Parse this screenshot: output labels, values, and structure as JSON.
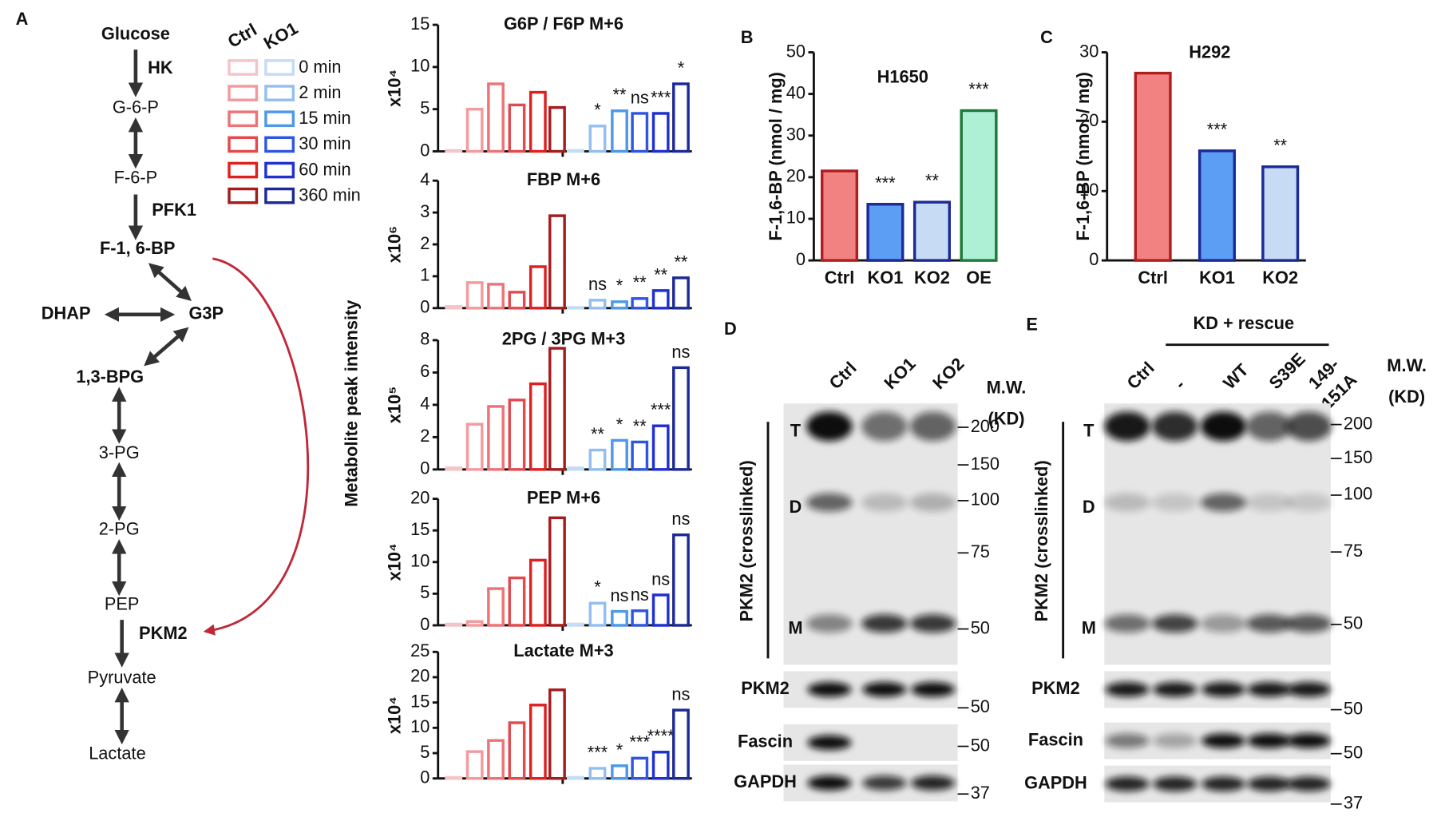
{
  "panel_a": {
    "letter": "A",
    "y_label": "Metabolite peak intensity",
    "legend": {
      "groups": [
        {
          "name": "Ctrl",
          "colors": [
            "#f5c4c8",
            "#f29a9e",
            "#ec7478",
            "#e34a4e",
            "#e0201f",
            "#a51c1c"
          ]
        },
        {
          "name": "KO1",
          "colors": [
            "#c4dcf5",
            "#93bff0",
            "#4f98e8",
            "#2f56e0",
            "#1f2fd2",
            "#1c2a96"
          ]
        }
      ],
      "categories": [
        "0 min",
        "2 min",
        "15 min",
        "30 min",
        "60 min",
        "360 min"
      ]
    }
  },
  "pathway": {
    "nodes": [
      "Glucose",
      "G-6-P",
      "F-6-P",
      "F-1, 6-BP",
      "DHAP",
      "G3P",
      "1,3-BPG",
      "3-PG",
      "2-PG",
      "PEP",
      "Pyruvate",
      "Lactate"
    ],
    "enzymes": [
      "HK",
      "PFK1",
      "PKM2"
    ]
  },
  "chart_data": [
    {
      "type": "grouped_bar",
      "title": "G6P / F6P M+6",
      "y_exponent": "x10⁴",
      "ylim": [
        0,
        15
      ],
      "yticks": [
        0,
        5,
        10,
        15
      ],
      "series": [
        {
          "values": [
            0.1,
            5,
            8,
            5.5,
            7,
            5.2
          ]
        },
        {
          "values": [
            0.1,
            3,
            4.8,
            4.5,
            4.5,
            8
          ],
          "annotations": [
            null,
            "*",
            "**",
            "ns",
            "***",
            "*"
          ]
        }
      ]
    },
    {
      "type": "grouped_bar",
      "title": "FBP M+6",
      "y_exponent": "x10⁶",
      "ylim": [
        0,
        4
      ],
      "yticks": [
        0,
        1,
        2,
        3,
        4
      ],
      "series": [
        {
          "values": [
            0.05,
            0.8,
            0.75,
            0.5,
            1.3,
            2.9
          ]
        },
        {
          "values": [
            0.02,
            0.25,
            0.2,
            0.3,
            0.55,
            0.95
          ],
          "annotations": [
            null,
            "ns",
            "*",
            "**",
            "**",
            "**"
          ]
        }
      ]
    },
    {
      "type": "grouped_bar",
      "title": "2PG / 3PG M+3",
      "y_exponent": "x10⁵",
      "ylim": [
        0,
        8
      ],
      "yticks": [
        0,
        2,
        4,
        6,
        8
      ],
      "series": [
        {
          "values": [
            0.1,
            2.8,
            3.9,
            4.3,
            5.3,
            7.5
          ]
        },
        {
          "values": [
            0.1,
            1.2,
            1.8,
            1.7,
            2.7,
            6.3
          ],
          "annotations": [
            null,
            "**",
            "*",
            "**",
            "***",
            "ns"
          ]
        }
      ]
    },
    {
      "type": "grouped_bar",
      "title": "PEP M+6",
      "y_exponent": "x10⁴",
      "ylim": [
        0,
        20
      ],
      "yticks": [
        0,
        5,
        10,
        15,
        20
      ],
      "series": [
        {
          "values": [
            0.2,
            0.6,
            5.8,
            7.5,
            10.3,
            17
          ]
        },
        {
          "values": [
            0.2,
            3.5,
            2.2,
            2.3,
            4.8,
            14.3
          ],
          "annotations": [
            null,
            "*",
            "ns",
            "ns",
            "ns",
            "ns"
          ]
        }
      ]
    },
    {
      "type": "grouped_bar",
      "title": "Lactate M+3",
      "y_exponent": "x10⁴",
      "ylim": [
        0,
        25
      ],
      "yticks": [
        0,
        5,
        10,
        15,
        20,
        25
      ],
      "series": [
        {
          "values": [
            0.2,
            5.3,
            7.5,
            11,
            14.5,
            17.5
          ]
        },
        {
          "values": [
            0.2,
            2,
            2.5,
            4,
            5.2,
            13.5
          ],
          "annotations": [
            null,
            "***",
            "*",
            "***",
            "****",
            "ns"
          ]
        }
      ]
    },
    {
      "type": "bar",
      "letter": "B",
      "title": "H1650",
      "y_label": "F-1,6-BP (nmol / mg)",
      "ylim": [
        0,
        50
      ],
      "yticks": [
        0,
        10,
        20,
        30,
        40,
        50
      ],
      "categories": [
        "Ctrl",
        "KO1",
        "KO2",
        "OE"
      ],
      "values": [
        21.5,
        13.5,
        14,
        36
      ],
      "annotations": [
        null,
        "***",
        "**",
        "***"
      ],
      "colors": [
        "#f28282",
        "#5b9ef4",
        "#c8dbf5",
        "#aef0d5"
      ],
      "edge_colors": [
        "#b01e1e",
        "#1c2a96",
        "#1c2a96",
        "#1e7a3a"
      ]
    },
    {
      "type": "bar",
      "letter": "C",
      "title": "H292",
      "y_label": "F-1,6-BP (nmol / mg)",
      "ylim": [
        0,
        30
      ],
      "yticks": [
        0,
        10,
        20,
        30
      ],
      "categories": [
        "Ctrl",
        "KO1",
        "KO2"
      ],
      "values": [
        27,
        15.8,
        13.5
      ],
      "annotations": [
        null,
        "***",
        "**"
      ],
      "colors": [
        "#f28282",
        "#5b9ef4",
        "#c8dbf5"
      ],
      "edge_colors": [
        "#b01e1e",
        "#1c2a96",
        "#1c2a96"
      ]
    }
  ],
  "panel_d": {
    "letter": "D",
    "lanes": [
      [
        "Ctrl"
      ],
      [
        "KO1"
      ],
      [
        "KO2"
      ]
    ],
    "mw_title": [
      "M.W.",
      "(KD)"
    ],
    "bands": [
      "T",
      "D",
      "M"
    ],
    "blot_label": "PKM2 (crosslinked)",
    "markers": [
      200,
      150,
      100,
      75,
      50
    ],
    "strips": [
      {
        "label": "PKM2",
        "marker": 50
      },
      {
        "label": "Fascin",
        "marker": 50
      },
      {
        "label": "GAPDH",
        "marker": 37
      }
    ]
  },
  "panel_e": {
    "letter": "E",
    "group_label": "KD + rescue",
    "lanes": [
      [
        "Ctrl"
      ],
      [
        "-"
      ],
      [
        "WT"
      ],
      [
        "S39E"
      ],
      [
        "149-",
        "151A"
      ]
    ],
    "mw_title": [
      "M.W.",
      "(KD)"
    ],
    "bands": [
      "T",
      "D",
      "M"
    ],
    "blot_label": "PKM2 (crosslinked)",
    "markers": [
      200,
      150,
      100,
      75,
      50
    ],
    "strips": [
      {
        "label": "PKM2",
        "marker": 50
      },
      {
        "label": "Fascin",
        "marker": 50
      },
      {
        "label": "GAPDH",
        "marker": 37
      }
    ]
  }
}
